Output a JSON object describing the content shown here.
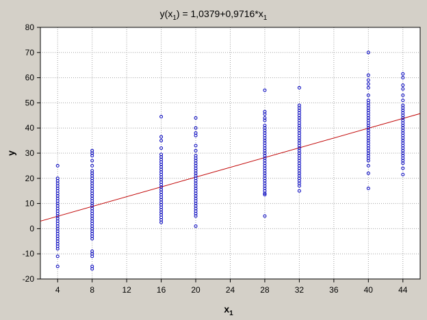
{
  "chart_data": {
    "type": "scatter",
    "title": {
      "main": "y(x",
      "sub": "1",
      "rest": ") = 1,0379+0,9716*x",
      "tail_sub": "1"
    },
    "xlabel": {
      "main": "x",
      "sub": "1"
    },
    "ylabel": "y",
    "xlim": [
      2,
      46
    ],
    "ylim": [
      -20,
      80
    ],
    "xticks": [
      4,
      8,
      12,
      16,
      20,
      24,
      28,
      32,
      36,
      40,
      44
    ],
    "yticks": [
      -20,
      -10,
      0,
      10,
      20,
      30,
      40,
      50,
      60,
      70,
      80
    ],
    "grid": true,
    "fit_line": {
      "intercept": 1.0379,
      "slope": 0.9716,
      "color": "#c00000"
    },
    "point_color": "#0000c0",
    "series": [
      {
        "groups": [
          {
            "x": 4,
            "y": [
              25,
              20,
              19,
              18,
              17,
              16,
              15,
              14,
              13,
              12,
              11,
              10,
              9,
              8,
              7,
              6,
              5,
              4,
              3,
              2,
              1,
              0,
              -1,
              -2,
              -3,
              -4,
              -5,
              -6,
              -7,
              -8,
              -11,
              -15
            ]
          },
          {
            "x": 8,
            "y": [
              31,
              30,
              29,
              27,
              25,
              23,
              22,
              21,
              20,
              19,
              18,
              17,
              16,
              15,
              14,
              13,
              12,
              11,
              10,
              9,
              8,
              7,
              6,
              5,
              4,
              3,
              2,
              1,
              0,
              -1,
              -2,
              -3,
              -4,
              -9,
              -10,
              -11,
              -15,
              -16
            ]
          },
          {
            "x": 16,
            "y": [
              44.5,
              36.5,
              35,
              32,
              29.5,
              28.5,
              27.5,
              26.5,
              25.5,
              24.5,
              23.5,
              22.5,
              21.5,
              20.5,
              19.5,
              18.5,
              17.5,
              16.5,
              15.5,
              14.5,
              13.5,
              12.5,
              11.5,
              10.5,
              9.5,
              8.5,
              7.5,
              6.5,
              5.5,
              4.5,
              3.5,
              2.5
            ]
          },
          {
            "x": 20,
            "y": [
              44,
              40,
              38,
              37,
              33,
              31,
              29,
              28,
              27,
              26,
              25,
              24,
              23,
              22,
              21,
              20,
              19,
              18,
              17,
              16,
              15,
              14,
              13,
              12,
              11,
              10,
              9,
              8,
              7,
              6,
              5,
              1
            ]
          },
          {
            "x": 28,
            "y": [
              55,
              46.5,
              45.5,
              44,
              43,
              41,
              40,
              39,
              38,
              37,
              36,
              35,
              34,
              33,
              32,
              31,
              30,
              29,
              28,
              27,
              26,
              25,
              24,
              23,
              22,
              21,
              20,
              19,
              18,
              17,
              16,
              15,
              14,
              13.5,
              5
            ]
          },
          {
            "x": 32,
            "y": [
              56,
              49,
              48,
              47,
              46,
              45,
              44,
              43,
              42,
              41,
              40,
              39,
              38,
              37,
              36,
              35,
              34,
              33,
              32,
              31,
              30,
              29,
              28,
              27,
              26,
              25,
              24,
              23,
              22,
              21,
              20,
              19,
              18,
              17,
              15
            ]
          },
          {
            "x": 40,
            "y": [
              70,
              61,
              59,
              57.5,
              56,
              53,
              51,
              50,
              49,
              48,
              47,
              46,
              45,
              44,
              43,
              42,
              41,
              40,
              39,
              38,
              37,
              36,
              35,
              34,
              33,
              32,
              31,
              30,
              29,
              28,
              27,
              25,
              22,
              16
            ]
          },
          {
            "x": 44,
            "y": [
              61.5,
              60,
              57,
              55.5,
              53,
              51,
              49,
              48,
              47,
              46,
              45,
              44,
              43,
              42,
              41,
              40,
              39,
              38,
              37,
              36,
              35,
              34,
              33,
              32,
              31,
              30,
              29,
              28,
              27,
              26,
              24,
              21.5
            ]
          }
        ]
      }
    ]
  }
}
